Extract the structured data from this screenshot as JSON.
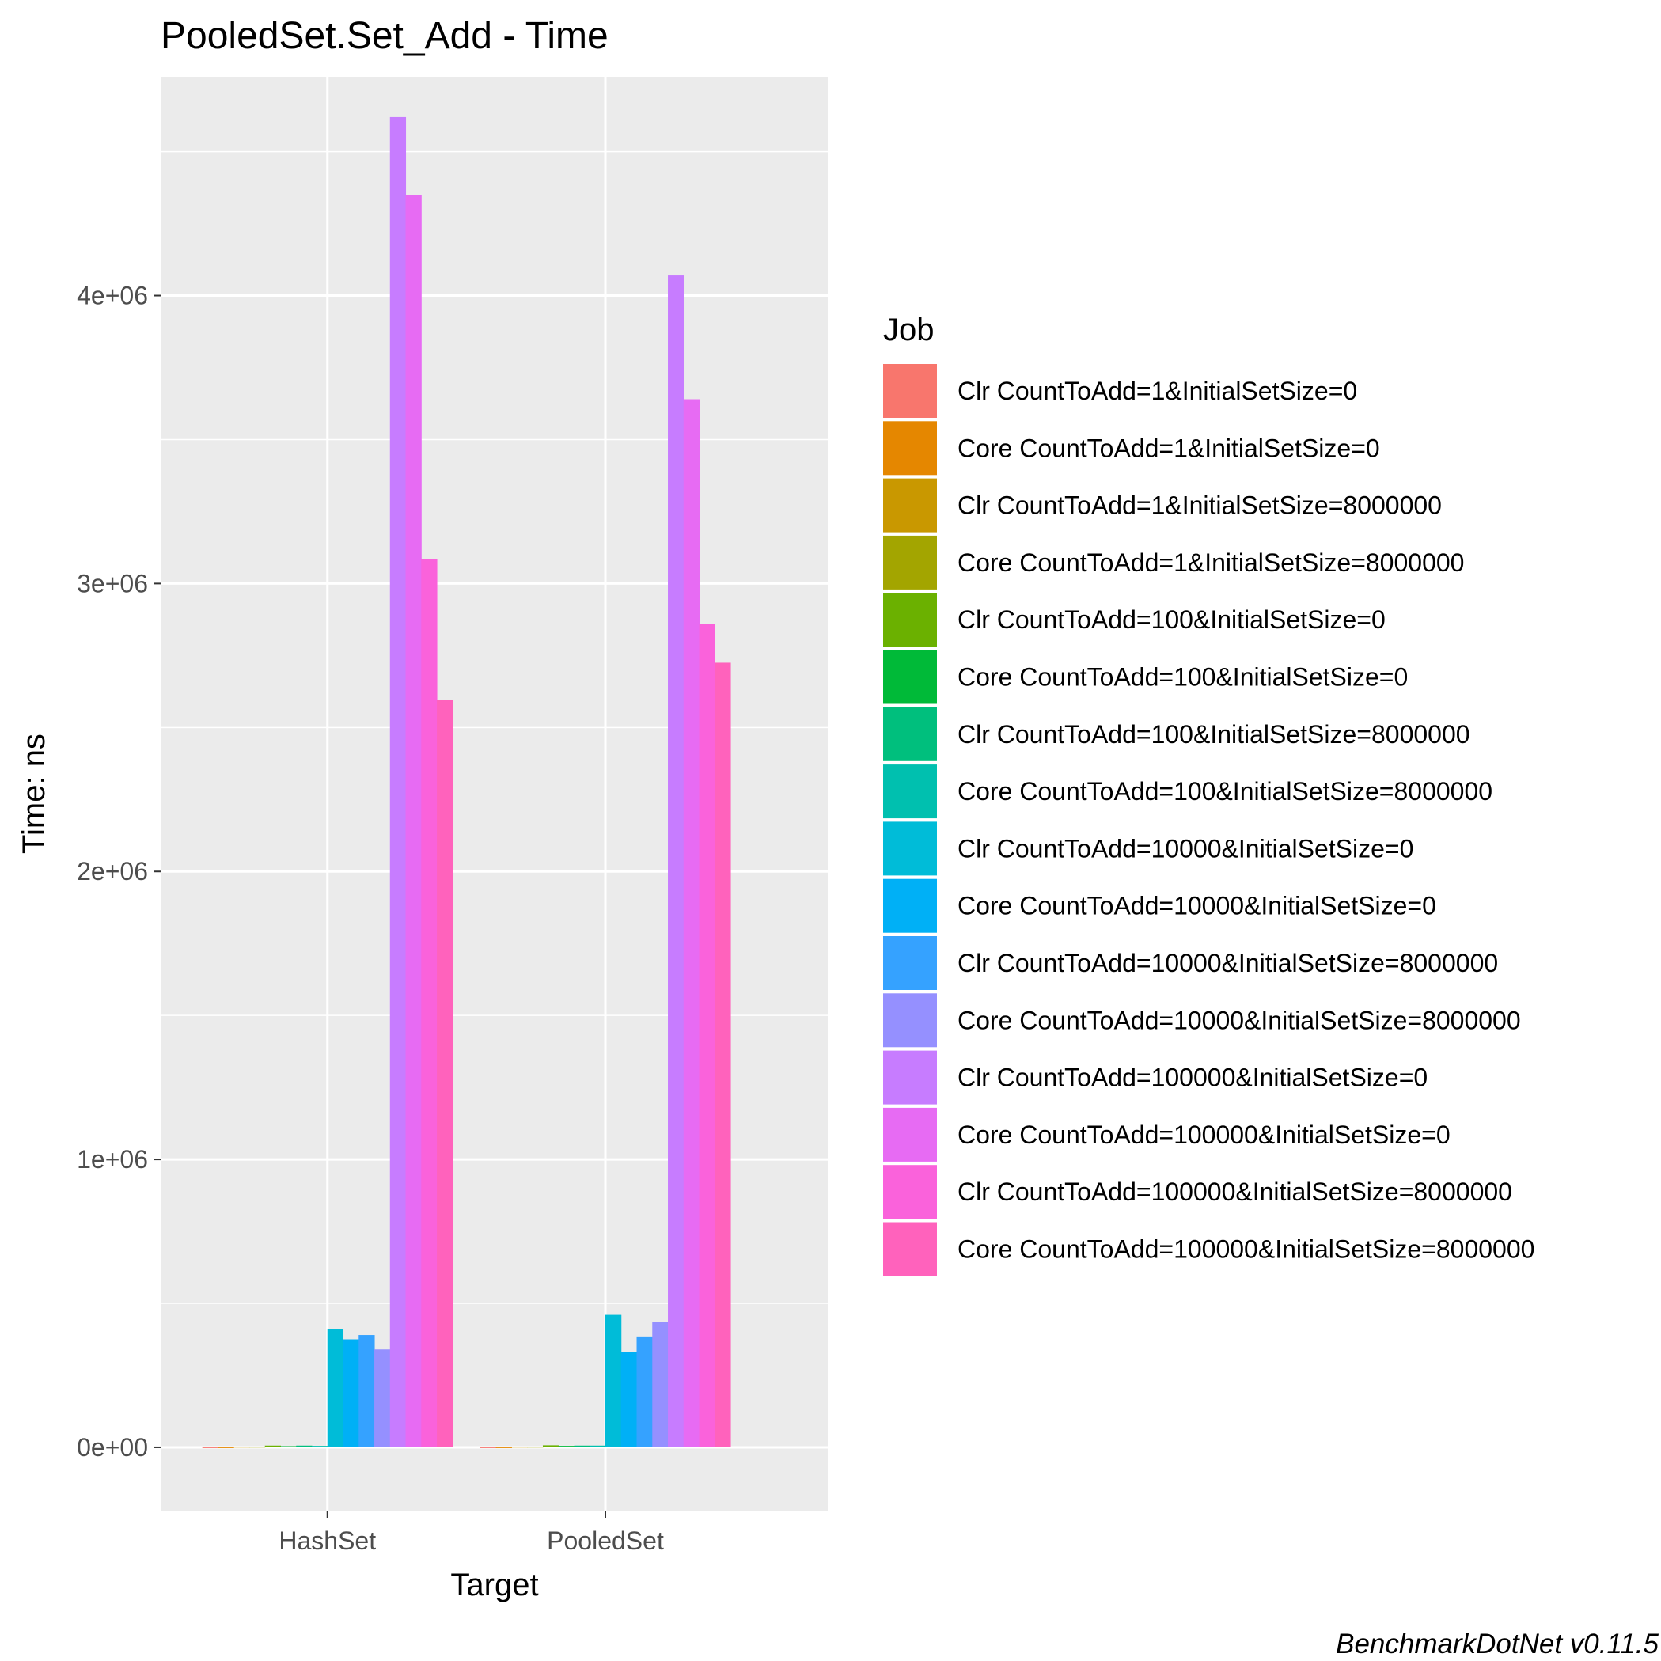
{
  "chart_data": {
    "type": "bar",
    "title": "PooledSet.Set_Add - Time",
    "xlabel": "Target",
    "ylabel": "Time: ns",
    "categories": [
      "HashSet",
      "PooledSet"
    ],
    "ylim": [
      -220000,
      4760000
    ],
    "yticks": [
      0,
      1000000,
      2000000,
      3000000,
      4000000
    ],
    "ytick_labels": [
      "0e+00",
      "1e+06",
      "2e+06",
      "3e+06",
      "4e+06"
    ],
    "grid": true,
    "legend": {
      "title": "Job",
      "position": "right"
    },
    "series": [
      {
        "name": "Clr CountToAdd=1&InitialSetSize=0",
        "color": "#F8766D",
        "values": [
          150,
          150
        ]
      },
      {
        "name": "Core CountToAdd=1&InitialSetSize=0",
        "color": "#E58700",
        "values": [
          150,
          150
        ]
      },
      {
        "name": "Clr CountToAdd=1&InitialSetSize=8000000",
        "color": "#C99800",
        "values": [
          2000,
          2000
        ]
      },
      {
        "name": "Core CountToAdd=1&InitialSetSize=8000000",
        "color": "#A3A500",
        "values": [
          2000,
          2000
        ]
      },
      {
        "name": "Clr CountToAdd=100&InitialSetSize=0",
        "color": "#6BB100",
        "values": [
          6000,
          7000
        ]
      },
      {
        "name": "Core CountToAdd=100&InitialSetSize=0",
        "color": "#00BA38",
        "values": [
          4000,
          5000
        ]
      },
      {
        "name": "Clr CountToAdd=100&InitialSetSize=8000000",
        "color": "#00BF7D",
        "values": [
          6000,
          6000
        ]
      },
      {
        "name": "Core CountToAdd=100&InitialSetSize=8000000",
        "color": "#00C0AF",
        "values": [
          5000,
          6000
        ]
      },
      {
        "name": "Clr CountToAdd=10000&InitialSetSize=0",
        "color": "#00BCD8",
        "values": [
          410000,
          460000
        ]
      },
      {
        "name": "Core CountToAdd=10000&InitialSetSize=0",
        "color": "#00B0F6",
        "values": [
          375000,
          330000
        ]
      },
      {
        "name": "Clr CountToAdd=10000&InitialSetSize=8000000",
        "color": "#35A2FF",
        "values": [
          390000,
          385000
        ]
      },
      {
        "name": "Core CountToAdd=10000&InitialSetSize=8000000",
        "color": "#9590FF",
        "values": [
          340000,
          435000
        ]
      },
      {
        "name": "Clr CountToAdd=100000&InitialSetSize=0",
        "color": "#C77CFF",
        "values": [
          4620000,
          4070000
        ]
      },
      {
        "name": "Core CountToAdd=100000&InitialSetSize=0",
        "color": "#E76BF3",
        "values": [
          4350000,
          3640000
        ]
      },
      {
        "name": "Clr CountToAdd=100000&InitialSetSize=8000000",
        "color": "#FA62DB",
        "values": [
          3085000,
          2860000
        ]
      },
      {
        "name": "Core CountToAdd=100000&InitialSetSize=8000000",
        "color": "#FF62BC",
        "values": [
          2595000,
          2725000
        ]
      }
    ]
  },
  "caption": "BenchmarkDotNet v0.11.5"
}
